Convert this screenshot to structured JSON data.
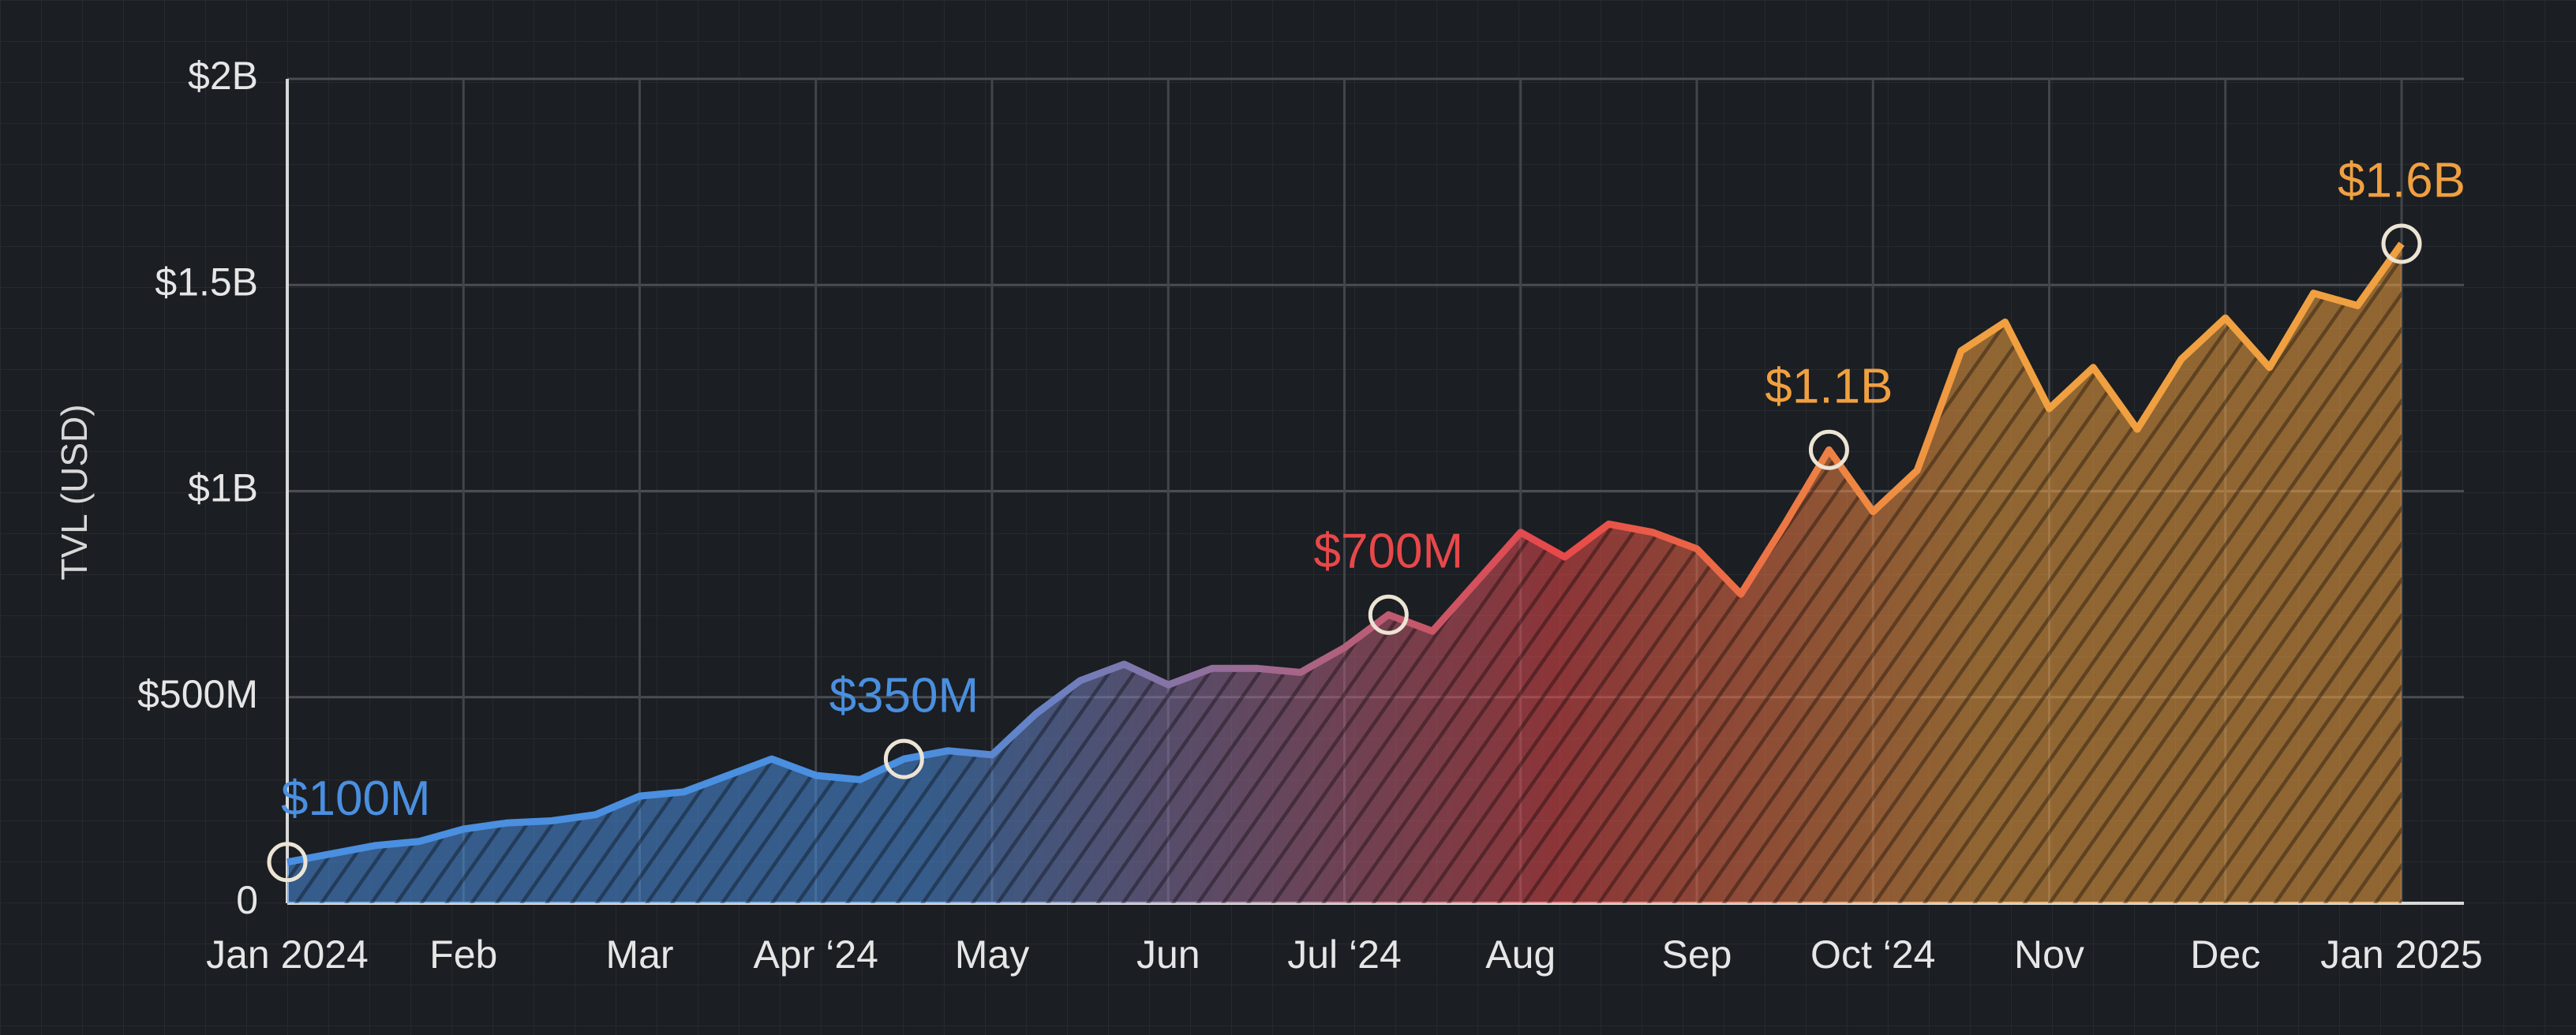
{
  "chart_data": {
    "type": "area",
    "y_label": "TVL (USD)",
    "categories": [
      "Jan 2024",
      null,
      null,
      null,
      "Feb",
      null,
      null,
      null,
      "Mar",
      null,
      null,
      null,
      "Apr ‘24",
      null,
      null,
      null,
      "May",
      null,
      null,
      null,
      "Jun",
      null,
      null,
      null,
      "Jul ‘24",
      null,
      null,
      null,
      "Aug",
      null,
      null,
      null,
      "Sep",
      null,
      null,
      null,
      "Oct ‘24",
      null,
      null,
      null,
      "Nov",
      null,
      null,
      null,
      "Dec",
      null,
      null,
      null,
      "Jan 2025"
    ],
    "series": [
      {
        "color": [
          "#4a8fe0",
          "#e8484a",
          "#f0a040"
        ],
        "values": [
          100000000,
          120000000,
          140000000,
          150000000,
          180000000,
          195000000,
          200000000,
          215000000,
          260000000,
          270000000,
          310000000,
          350000000,
          310000000,
          300000000,
          350000000,
          370000000,
          360000000,
          460000000,
          540000000,
          580000000,
          530000000,
          570000000,
          570000000,
          560000000,
          620000000,
          700000000,
          660000000,
          780000000,
          900000000,
          840000000,
          920000000,
          900000000,
          860000000,
          750000000,
          920000000,
          1100000000,
          950000000,
          1050000000,
          1340000000,
          1410000000,
          1200000000,
          1300000000,
          1150000000,
          1320000000,
          1420000000,
          1300000000,
          1480000000,
          1450000000,
          1600000000
        ],
        "value_labels": [
          "$100M",
          null,
          null,
          null,
          null,
          null,
          null,
          null,
          null,
          null,
          null,
          null,
          null,
          null,
          "$350M",
          null,
          null,
          null,
          null,
          null,
          null,
          null,
          null,
          null,
          null,
          "$700M",
          null,
          null,
          null,
          null,
          null,
          null,
          null,
          null,
          null,
          "$1.1B",
          null,
          null,
          null,
          null,
          null,
          null,
          null,
          null,
          null,
          null,
          null,
          null,
          "$1.6B"
        ]
      }
    ],
    "ylim": [
      0,
      2000000000
    ],
    "yticks": [
      0,
      {
        "value": 500000000,
        "label": "$500M"
      },
      {
        "value": 1000000000,
        "label": "$1B"
      },
      {
        "value": 1500000000,
        "label": "$1.5B"
      },
      {
        "value": 2000000000,
        "label": "$2B"
      }
    ],
    "grid": true
  }
}
